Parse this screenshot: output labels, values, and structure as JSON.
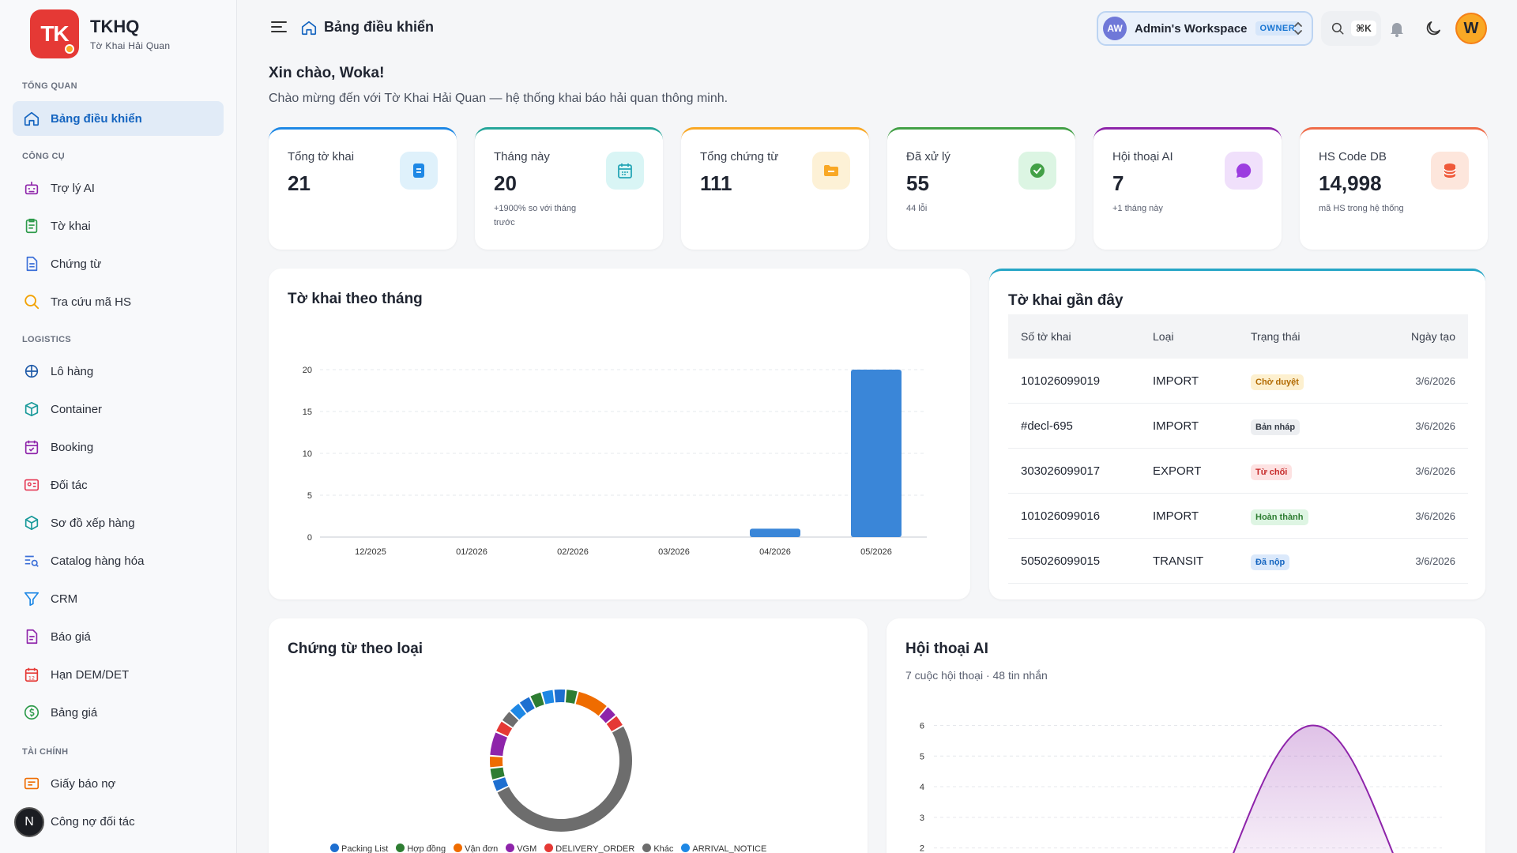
{
  "brand": {
    "logo": "TK",
    "title": "TKHQ",
    "subtitle": "Tờ Khai Hải Quan"
  },
  "sidebar": {
    "sections": [
      {
        "label": "TỔNG QUAN",
        "items": [
          {
            "label": "Bảng điều khiển",
            "icon": "home-icon",
            "active": true
          }
        ]
      },
      {
        "label": "CÔNG CỤ",
        "items": [
          {
            "label": "Trợ lý AI",
            "icon": "robot-icon"
          },
          {
            "label": "Tờ khai",
            "icon": "clipboard-icon"
          },
          {
            "label": "Chứng từ",
            "icon": "document-icon"
          },
          {
            "label": "Tra cứu mã HS",
            "icon": "search-icon"
          }
        ]
      },
      {
        "label": "LOGISTICS",
        "items": [
          {
            "label": "Lô hàng",
            "icon": "ship-icon"
          },
          {
            "label": "Container",
            "icon": "box-icon"
          },
          {
            "label": "Booking",
            "icon": "calendar-check-icon"
          },
          {
            "label": "Đối tác",
            "icon": "id-card-icon"
          },
          {
            "label": "Sơ đồ xếp hàng",
            "icon": "cube-icon"
          },
          {
            "label": "Catalog hàng hóa",
            "icon": "list-search-icon"
          },
          {
            "label": "CRM",
            "icon": "funnel-icon"
          },
          {
            "label": "Báo giá",
            "icon": "file-text-icon"
          },
          {
            "label": "Hạn DEM/DET",
            "icon": "calendar-12-icon"
          },
          {
            "label": "Bảng giá",
            "icon": "dollar-circle-icon"
          }
        ]
      },
      {
        "label": "TÀI CHÍNH",
        "items": [
          {
            "label": "Giấy báo nợ",
            "icon": "invoice-icon"
          },
          {
            "label": "Công nợ đối tác",
            "icon": "ledger-icon"
          }
        ]
      }
    ],
    "n_badge": "N"
  },
  "header": {
    "title": "Bảng điều khiển",
    "workspace": {
      "avatar": "AW",
      "name": "Admin's Workspace",
      "role": "OWNER"
    },
    "search_shortcut": "⌘K",
    "user_initial": "W"
  },
  "greeting": {
    "title": "Xin chào, Woka!",
    "subtitle": "Chào mừng đến với Tờ Khai Hải Quan — hệ thống khai báo hải quan thông minh."
  },
  "stats": [
    {
      "label": "Tổng tờ khai",
      "value": "21",
      "sub": "",
      "color": "#1e88e5",
      "icon_bg": "#dff1fb",
      "icon": "document-icon"
    },
    {
      "label": "Tháng này",
      "value": "20",
      "sub": "+1900% so với tháng trước",
      "color": "#26a69a",
      "icon_bg": "#d9f5f5",
      "icon": "calendar-icon"
    },
    {
      "label": "Tổng chứng từ",
      "value": "111",
      "sub": "",
      "color": "#f9a825",
      "icon_bg": "#fdf1d6",
      "icon": "folder-icon"
    },
    {
      "label": "Đã xử lý",
      "value": "55",
      "sub": "44 lỗi",
      "color": "#43a047",
      "icon_bg": "#dcf5e3",
      "icon": "check-circle-icon"
    },
    {
      "label": "Hội thoại AI",
      "value": "7",
      "sub": "+1 tháng này",
      "color": "#8e24aa",
      "icon_bg": "#f0e0fb",
      "icon": "chat-icon"
    },
    {
      "label": "HS Code DB",
      "value": "14,998",
      "sub": "mã HS trong hệ thống",
      "color": "#ef6c4a",
      "icon_bg": "#fde6dc",
      "icon": "database-icon"
    }
  ],
  "monthly_chart": {
    "title": "Tờ khai theo tháng"
  },
  "recent": {
    "title": "Tờ khai gần đây",
    "columns": [
      "Số tờ khai",
      "Loại",
      "Trạng thái",
      "Ngày tạo"
    ],
    "rows": [
      {
        "number": "101026099019",
        "type": "IMPORT",
        "status": "Chờ duyệt",
        "status_color": "#b26a00",
        "status_bg": "#fdf0cf",
        "date": "3/6/2026"
      },
      {
        "number": "#decl-695",
        "type": "IMPORT",
        "status": "Bản nháp",
        "status_color": "#333a45",
        "status_bg": "#eceef1",
        "date": "3/6/2026"
      },
      {
        "number": "303026099017",
        "type": "EXPORT",
        "status": "Từ chối",
        "status_color": "#c62828",
        "status_bg": "#fde2e2",
        "date": "3/6/2026"
      },
      {
        "number": "101026099016",
        "type": "IMPORT",
        "status": "Hoàn thành",
        "status_color": "#2e7d32",
        "status_bg": "#def5e3",
        "date": "3/6/2026"
      },
      {
        "number": "505026099015",
        "type": "TRANSIT",
        "status": "Đã nộp",
        "status_color": "#1565c0",
        "status_bg": "#dbe9fb",
        "date": "3/6/2026"
      }
    ]
  },
  "docs_chart": {
    "title": "Chứng từ theo loại"
  },
  "ai_chart": {
    "title": "Hội thoại AI",
    "subtitle": "7 cuộc hội thoại · 48 tin nhắn"
  },
  "chart_data": [
    {
      "type": "bar",
      "title": "Tờ khai theo tháng",
      "categories": [
        "12/2025",
        "01/2026",
        "02/2026",
        "03/2026",
        "04/2026",
        "05/2026"
      ],
      "values": [
        0,
        0,
        0,
        0,
        1,
        20
      ],
      "ylim": [
        0,
        20
      ],
      "yticks": [
        "0",
        "5",
        "10",
        "15",
        "20"
      ],
      "grid": true,
      "color": "#3a86d8"
    },
    {
      "type": "pie",
      "title": "Chứng từ theo loại",
      "legend": [
        {
          "name": "Packing List",
          "color": "#1e6fd0"
        },
        {
          "name": "Hợp đồng",
          "color": "#2e7d32"
        },
        {
          "name": "Vận đơn",
          "color": "#ef6c00"
        },
        {
          "name": "VGM",
          "color": "#8e24aa"
        },
        {
          "name": "DELIVERY_ORDER",
          "color": "#e53935"
        },
        {
          "name": "Khác",
          "color": "#6d6d6d"
        },
        {
          "name": "ARRIVAL_NOTICE",
          "color": "#1e88e5"
        }
      ],
      "segments": [
        {
          "color": "#1e88e5",
          "value": 3
        },
        {
          "color": "#1e6fd0",
          "value": 3
        },
        {
          "color": "#2e7d32",
          "value": 3
        },
        {
          "color": "#ef6c00",
          "value": 8
        },
        {
          "color": "#8e24aa",
          "value": 3
        },
        {
          "color": "#e53935",
          "value": 3
        },
        {
          "color": "#6d6d6d",
          "value": 55
        },
        {
          "color": "#1e6fd0",
          "value": 3
        },
        {
          "color": "#2e7d32",
          "value": 3
        },
        {
          "color": "#ef6c00",
          "value": 3
        },
        {
          "color": "#8e24aa",
          "value": 6
        },
        {
          "color": "#e53935",
          "value": 3
        },
        {
          "color": "#6d6d6d",
          "value": 3
        },
        {
          "color": "#1e88e5",
          "value": 3
        },
        {
          "color": "#1e6fd0",
          "value": 3
        },
        {
          "color": "#2e7d32",
          "value": 3
        }
      ]
    },
    {
      "type": "area",
      "title": "Hội thoại AI",
      "yticks": [
        "2",
        "3",
        "4",
        "5",
        "6"
      ],
      "ylim": [
        1.5,
        6.4
      ],
      "peak": 6,
      "color": "#8e24aa"
    }
  ]
}
